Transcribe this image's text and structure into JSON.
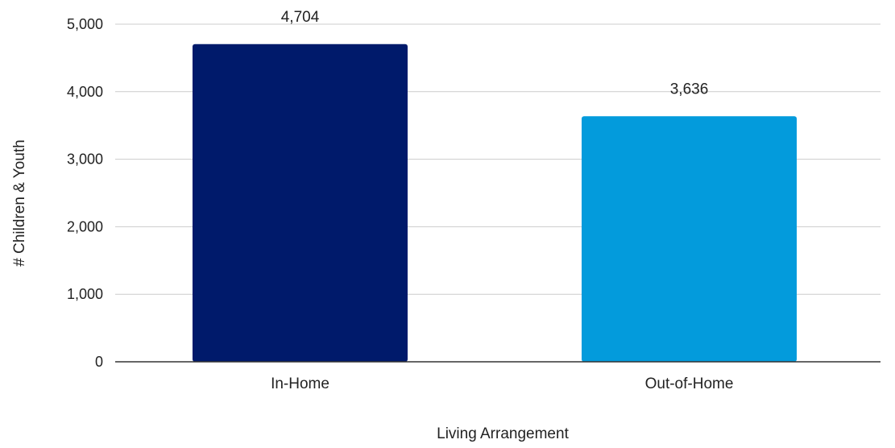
{
  "chart_data": {
    "type": "bar",
    "title": "",
    "xlabel": "Living Arrangement",
    "ylabel": "# Children & Youth",
    "categories": [
      "In-Home",
      "Out-of-Home"
    ],
    "values": [
      4704,
      3636
    ],
    "value_labels": [
      "4,704",
      "3,636"
    ],
    "bar_colors": [
      "#001a6b",
      "#039bdc"
    ],
    "ylim": [
      0,
      5000
    ],
    "yticks": [
      0,
      1000,
      2000,
      3000,
      4000,
      5000
    ],
    "ytick_labels": [
      "0",
      "1,000",
      "2,000",
      "3,000",
      "4,000",
      "5,000"
    ],
    "grid": true,
    "legend": "none"
  }
}
